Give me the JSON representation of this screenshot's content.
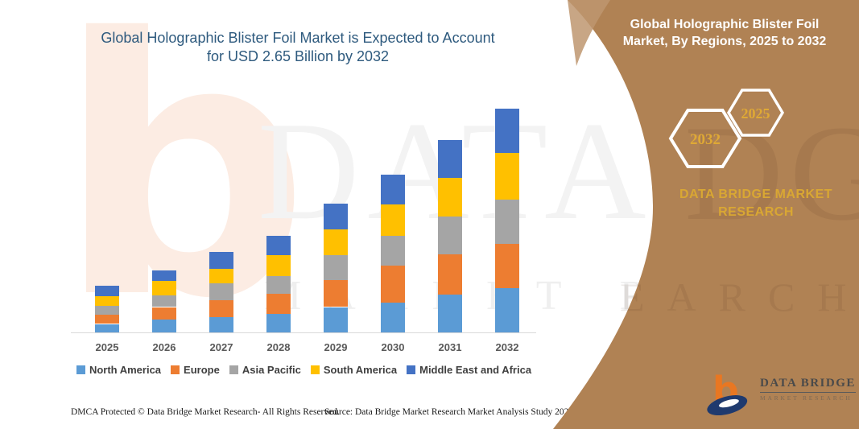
{
  "header": {
    "title_line1": "Global Holographic Blister Foil Market is Expected to Account",
    "title_line2": "for USD 2.65 Billion by 2032",
    "color": "#2E5A7E"
  },
  "chart_data": {
    "type": "bar",
    "subtype": "stacked-vertical",
    "unit": "USD Billion (estimated from bar heights; total 2032 = 2.65)",
    "categories": [
      "2025",
      "2026",
      "2027",
      "2028",
      "2029",
      "2030",
      "2031",
      "2032"
    ],
    "series": [
      {
        "name": "North America",
        "color": "#5B9BD5",
        "values": [
          0.1,
          0.15,
          0.18,
          0.22,
          0.3,
          0.35,
          0.45,
          0.52
        ]
      },
      {
        "name": "Europe",
        "color": "#ED7D31",
        "values": [
          0.11,
          0.15,
          0.2,
          0.24,
          0.32,
          0.44,
          0.47,
          0.53
        ]
      },
      {
        "name": "Asia Pacific",
        "color": "#A5A5A5",
        "values": [
          0.1,
          0.14,
          0.2,
          0.21,
          0.29,
          0.35,
          0.45,
          0.52
        ]
      },
      {
        "name": "South America",
        "color": "#FFC000",
        "values": [
          0.12,
          0.17,
          0.17,
          0.24,
          0.31,
          0.37,
          0.46,
          0.55
        ]
      },
      {
        "name": "Middle East and Africa",
        "color": "#4472C4",
        "values": [
          0.12,
          0.12,
          0.2,
          0.23,
          0.3,
          0.36,
          0.45,
          0.53
        ]
      }
    ],
    "totals": [
      0.55,
      0.73,
      0.95,
      1.14,
      1.52,
      1.87,
      2.28,
      2.65
    ],
    "ylim": [
      0,
      2.8
    ],
    "grid": false,
    "y_axis_shown": false,
    "legend_position": "bottom"
  },
  "panel": {
    "bg_color": "#B08254",
    "title_line1": "Global Holographic Blister Foil",
    "title_line2": "Market, By Regions, 2025 to 2032",
    "hexagon_large_label": "2032",
    "hexagon_small_label": "2025",
    "gold_color": "#D9A733",
    "brand_line1": "DATA BRIDGE MARKET",
    "brand_line2": "RESEARCH"
  },
  "footer": {
    "dmca": "DMCA Protected © Data Bridge Market Research-  All Rights Reserved.",
    "source": "Source: Data Bridge Market Research  Market Analysis Study 2025"
  },
  "logo": {
    "name": "DATA BRIDGE",
    "subtitle": "MARKET RESEARCH"
  },
  "watermarks": {
    "letter": "b",
    "brand": "DATA BRIDGE",
    "row": "MARKET RESEARCH",
    "panel_fragment1": "DGE",
    "panel_fragment2": "EARCH"
  }
}
